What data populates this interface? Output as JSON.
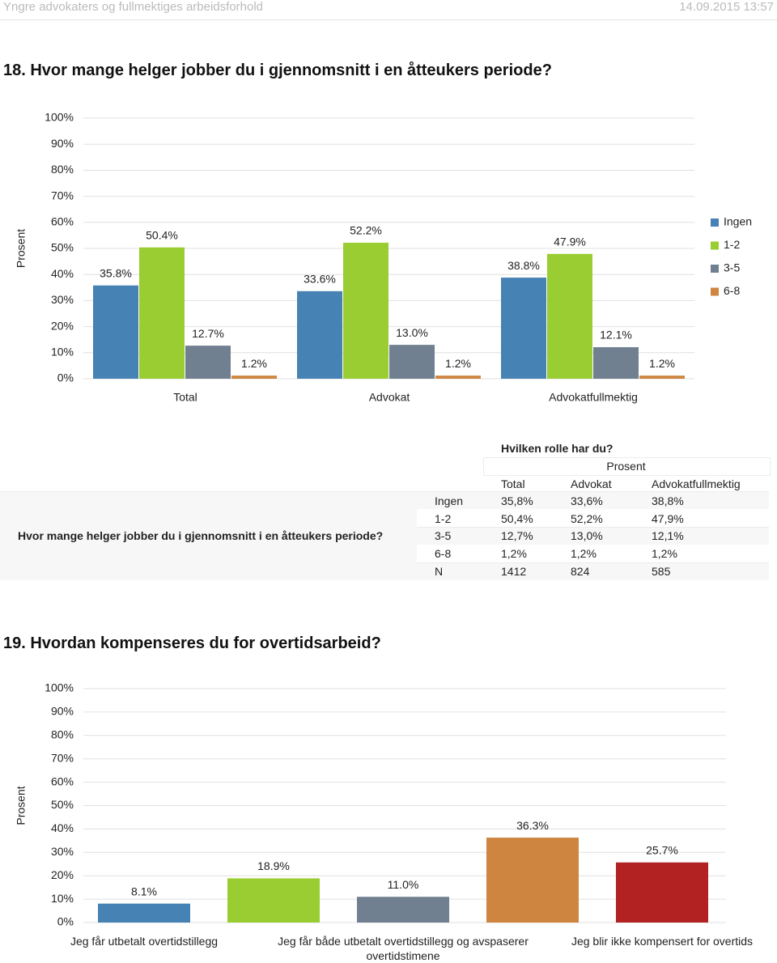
{
  "header": {
    "title": "Yngre advokaters og fullmektiges arbeidsforhold",
    "timestamp": "14.09.2015 13:57"
  },
  "questions": [
    "18. Hvor mange helger jobber du i gjennomsnitt i en åtteukers periode?",
    "19. Hvordan kompenseres du for overtidsarbeid?"
  ],
  "chart_data": [
    {
      "type": "bar",
      "ylabel": "Prosent",
      "categories": [
        "Total",
        "Advokat",
        "Advokatfullmektig"
      ],
      "series": [
        {
          "name": "Ingen",
          "color": "#4682b4",
          "values": [
            35.8,
            33.6,
            38.8
          ],
          "value_labels": [
            "35.8%",
            "33.6%",
            "38.8%"
          ]
        },
        {
          "name": "1-2",
          "color": "#9acd32",
          "values": [
            50.4,
            52.2,
            47.9
          ],
          "value_labels": [
            "50.4%",
            "52.2%",
            "47.9%"
          ]
        },
        {
          "name": "3-5",
          "color": "#708090",
          "values": [
            12.7,
            13.0,
            12.1
          ],
          "value_labels": [
            "12.7%",
            "13.0%",
            "12.1%"
          ]
        },
        {
          "name": "6-8",
          "color": "#cd853f",
          "values": [
            1.2,
            1.2,
            1.2
          ],
          "value_labels": [
            "1.2%",
            "1.2%",
            "1.2%"
          ]
        }
      ],
      "ylim": [
        0,
        100
      ],
      "yticks": [
        {
          "value": 0,
          "label": "0%"
        },
        {
          "value": 10,
          "label": "10%"
        },
        {
          "value": 20,
          "label": "20%"
        },
        {
          "value": 30,
          "label": "30%"
        },
        {
          "value": 40,
          "label": "40%"
        },
        {
          "value": 50,
          "label": "50%"
        },
        {
          "value": 60,
          "label": "60%"
        },
        {
          "value": 70,
          "label": "70%"
        },
        {
          "value": 80,
          "label": "80%"
        },
        {
          "value": 90,
          "label": "90%"
        },
        {
          "value": 100,
          "label": "100%"
        }
      ],
      "grid": true,
      "legend": "right"
    },
    {
      "type": "bar",
      "ylabel": "Prosent",
      "categories": [
        "Jeg får utbetalt overtidstillegg",
        null,
        "Jeg får både utbetalt overtidstillegg og avspaserer overtidstimene",
        null,
        "Jeg blir ikke kompensert for overtids"
      ],
      "values": [
        8.1,
        18.9,
        11.0,
        36.3,
        25.7
      ],
      "value_labels": [
        "8.1%",
        "18.9%",
        "11.0%",
        "36.3%",
        "25.7%"
      ],
      "colors": [
        "#4682b4",
        "#9acd32",
        "#708090",
        "#cd853f",
        "#b22222"
      ],
      "ylim": [
        0,
        100
      ],
      "yticks": [
        {
          "value": 0,
          "label": "0%"
        },
        {
          "value": 10,
          "label": "10%"
        },
        {
          "value": 20,
          "label": "20%"
        },
        {
          "value": 30,
          "label": "30%"
        },
        {
          "value": 40,
          "label": "40%"
        },
        {
          "value": 50,
          "label": "50%"
        },
        {
          "value": 60,
          "label": "60%"
        },
        {
          "value": 70,
          "label": "70%"
        },
        {
          "value": 80,
          "label": "80%"
        },
        {
          "value": 90,
          "label": "90%"
        },
        {
          "value": 100,
          "label": "100%"
        }
      ],
      "grid": true
    }
  ],
  "table": {
    "title": "Hvilken rolle har du?",
    "group": "Prosent",
    "columns": [
      "Total",
      "Advokat",
      "Advokatfullmektig"
    ],
    "question": "Hvor mange helger jobber du i gjennomsnitt i en åtteukers periode?",
    "rows": [
      [
        "Ingen",
        "35,8%",
        "33,6%",
        "38,8%"
      ],
      [
        "1-2",
        "50,4%",
        "52,2%",
        "47,9%"
      ],
      [
        "3-5",
        "12,7%",
        "13,0%",
        "12,1%"
      ],
      [
        "6-8",
        "1,2%",
        "1,2%",
        "1,2%"
      ],
      [
        "N",
        "1412",
        "824",
        "585"
      ]
    ]
  }
}
